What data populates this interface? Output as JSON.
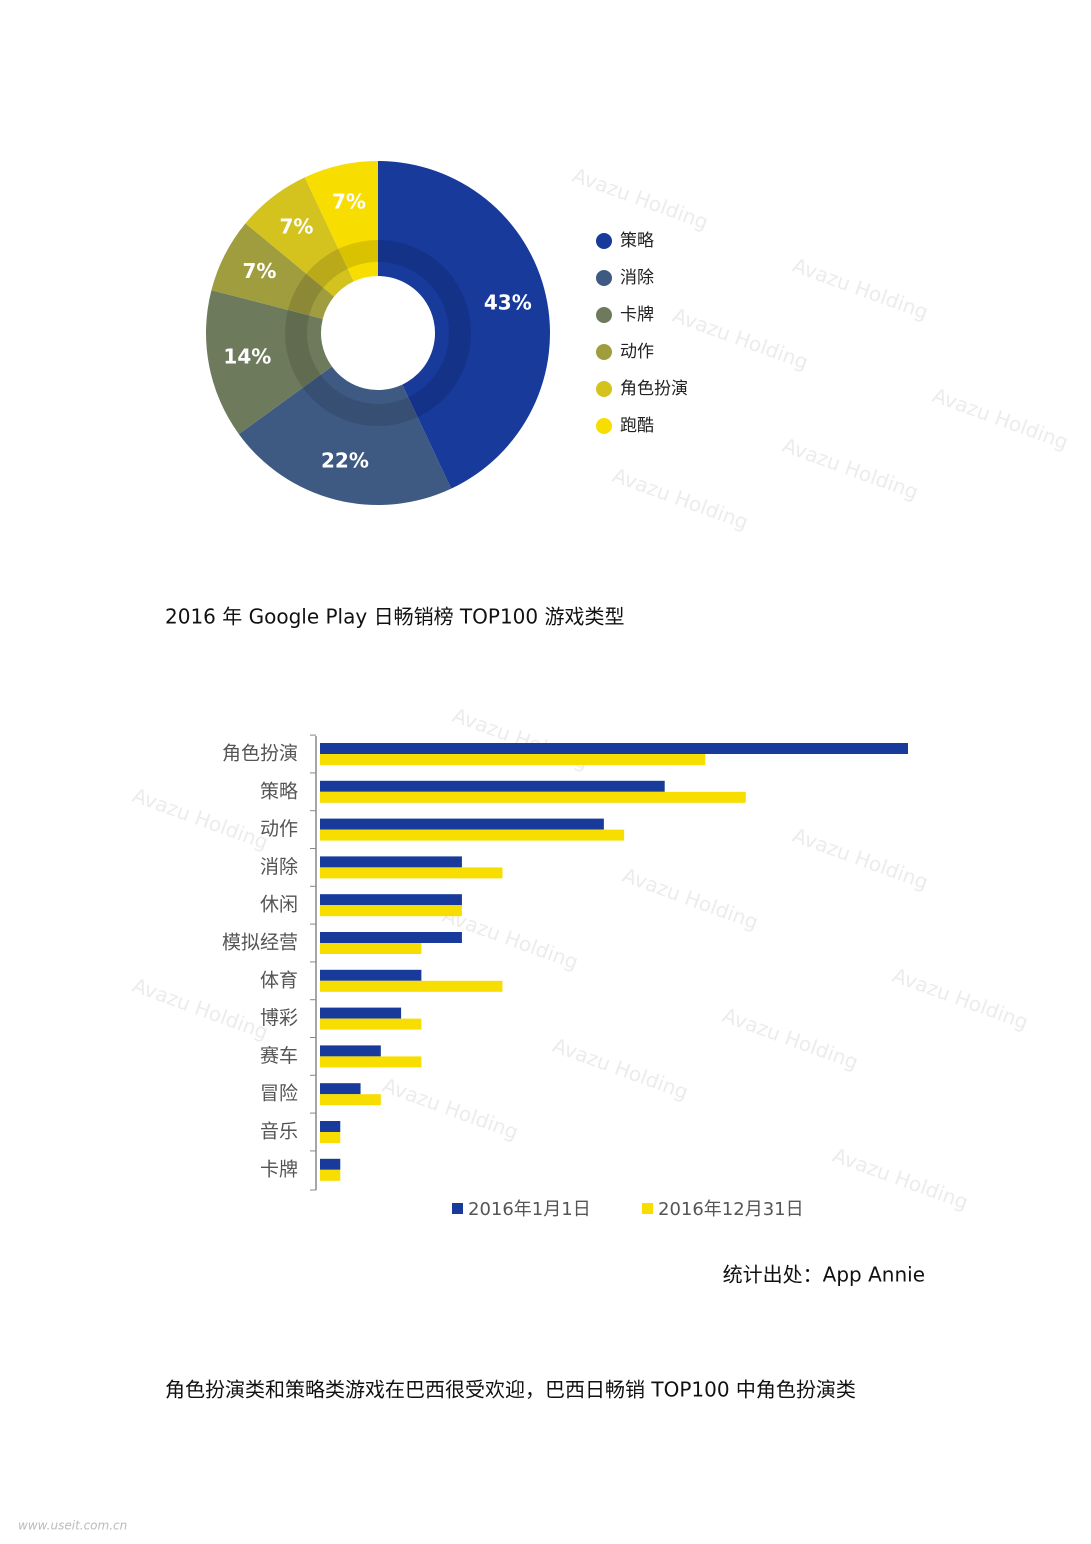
{
  "chart_data": [
    {
      "type": "pie",
      "categories": [
        "策略",
        "消除",
        "卡牌",
        "动作",
        "角色扮演",
        "跑酷"
      ],
      "values": [
        43,
        22,
        14,
        7,
        7,
        7
      ],
      "value_labels": [
        "43%",
        "22%",
        "14%",
        "7%",
        "7%",
        "7%"
      ],
      "colors": [
        "#173a9b",
        "#3e5a82",
        "#6e7a5c",
        "#a09d3e",
        "#d4c21e",
        "#f7de00"
      ],
      "legend": "right"
    },
    {
      "type": "hbar",
      "categories": [
        "角色扮演",
        "策略",
        "动作",
        "消除",
        "休闲",
        "模拟经营",
        "体育",
        "博彩",
        "赛车",
        "冒险",
        "音乐",
        "卡牌"
      ],
      "series": [
        {
          "name": "2016年1月1日",
          "color": "#173a9b",
          "values": [
            29,
            17,
            14,
            7,
            7,
            7,
            5,
            4,
            3,
            2,
            1,
            1
          ]
        },
        {
          "name": "2016年12月31日",
          "color": "#f7de00",
          "values": [
            19,
            21,
            15,
            9,
            7,
            5,
            9,
            5,
            5,
            3,
            1,
            1
          ]
        }
      ],
      "legend": "bottom"
    }
  ],
  "caption": "2016 年  Google Play  日畅销榜 TOP100 游戏类型",
  "source": "统计出处：App Annie",
  "paragraph": "角色扮演类和策略类游戏在巴西很受欢迎，巴西日畅销  TOP100  中角色扮演类",
  "watermark": "Avazu Holding",
  "site_mark": "www.useit.com.cn"
}
